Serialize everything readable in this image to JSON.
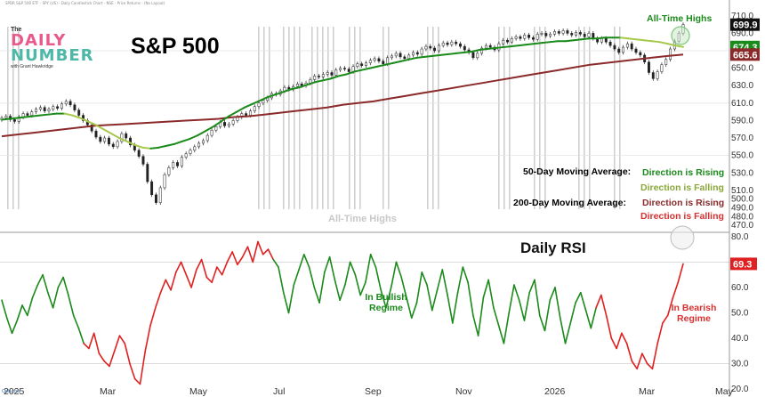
{
  "header_line": "SPDR S&P 500 ETF - SPY (US) - Daily Candlestick Chart - NSE - Price Returns - (No Layout)",
  "logo": {
    "the": "The",
    "word1": "DAILY",
    "word2": "NUMBER",
    "sub": "with Grant Hawkridge"
  },
  "title": "S&P 500",
  "rsi_title": "Daily RSI",
  "all_time_highs_label": "All-Time Highs",
  "all_time_highs_top": "All-Time Highs",
  "legend": {
    "ma50_label": "50-Day Moving Average:",
    "ma50_rising": "Direction is Rising",
    "ma50_falling": "Direction is Falling",
    "ma200_label": "200-Day Moving Average:",
    "ma200_rising": "Direction is Rising",
    "ma200_falling": "Direction is Falling"
  },
  "rsi_annotations": {
    "bullish": "In Bullish Regime",
    "bearish": "In Bearish Regime"
  },
  "corner_logo": "Optuma",
  "colors": {
    "candle": "#222222",
    "ma50_rising": "#1a8a1a",
    "ma50_falling": "#a7c94b",
    "ma200_rising": "#8b2a2a",
    "ma200_falling": "#d93030",
    "rsi_bull": "#1a8a1a",
    "rsi_bear": "#e02020",
    "ath_band": "#d0d0d0",
    "grid": "#e3e3e3"
  },
  "chart_data": [
    {
      "type": "line",
      "name": "price",
      "title": "S&P 500",
      "ylim": [
        465,
        722
      ],
      "x_ticks": [
        "2025",
        "Mar",
        "May",
        "Jul",
        "Sep",
        "Nov",
        "2026",
        "Mar",
        "May"
      ],
      "y_ticks": [
        "470.0",
        "480.0",
        "490.0",
        "500.0",
        "510.0",
        "530.0",
        "550.0",
        "570.0",
        "590.0",
        "610.0",
        "630.0",
        "650.0",
        "670.0",
        "690.0",
        "710.0"
      ],
      "last_values": {
        "price": "699.9",
        "ma50": "674.3",
        "ma200": "665.6"
      },
      "close": [
        593,
        595,
        591,
        589,
        594,
        598,
        596,
        600,
        603,
        605,
        601,
        603,
        606,
        604,
        609,
        612,
        608,
        602,
        596,
        590,
        585,
        578,
        571,
        566,
        570,
        563,
        560,
        566,
        575,
        570,
        562,
        556,
        549,
        540,
        520,
        505,
        496,
        513,
        528,
        536,
        542,
        538,
        548,
        552,
        556,
        560,
        564,
        567,
        573,
        579,
        583,
        588,
        584,
        586,
        590,
        594,
        598,
        596,
        601,
        606,
        610,
        613,
        616,
        621,
        620,
        624,
        628,
        626,
        629,
        632,
        630,
        633,
        637,
        641,
        640,
        643,
        645,
        642,
        648,
        650,
        649,
        646,
        652,
        655,
        653,
        656,
        659,
        661,
        658,
        655,
        662,
        664,
        667,
        663,
        661,
        665,
        668,
        666,
        672,
        675,
        673,
        670,
        676,
        679,
        677,
        680,
        678,
        675,
        671,
        668,
        662,
        667,
        673,
        676,
        674,
        671,
        678,
        682,
        680,
        684,
        686,
        684,
        688,
        685,
        683,
        689,
        690,
        687,
        689,
        692,
        690,
        693,
        690,
        688,
        691,
        689,
        686,
        690,
        684,
        680,
        684,
        680,
        676,
        672,
        668,
        674,
        678,
        672,
        668,
        665,
        657,
        645,
        638,
        646,
        654,
        660,
        672,
        681,
        690,
        699.9
      ],
      "ma50": [
        591,
        592,
        593,
        594,
        595,
        596,
        597,
        598,
        598,
        596,
        593,
        589,
        585,
        580,
        575,
        570,
        566,
        562,
        559,
        558,
        559,
        561,
        563,
        566,
        569,
        573,
        578,
        583,
        589,
        595,
        600,
        605,
        609,
        613,
        617,
        620,
        623,
        626,
        628,
        631,
        634,
        636,
        638,
        641,
        643,
        646,
        648,
        650,
        652,
        654,
        656,
        658,
        660,
        662,
        663,
        664,
        665,
        666,
        667,
        668,
        669,
        671,
        672,
        673,
        674,
        675,
        676,
        677,
        678,
        679,
        680,
        681,
        681,
        682,
        683,
        684,
        684,
        685,
        685,
        685,
        684,
        683,
        682,
        681,
        680,
        678,
        676,
        674.3
      ],
      "ma200": [
        572,
        574,
        576,
        578,
        580,
        582,
        584,
        585,
        586,
        587,
        588,
        589,
        590,
        591,
        592,
        594,
        595,
        597,
        599,
        601,
        603,
        605,
        608,
        610,
        612,
        615,
        618,
        621,
        624,
        627,
        630,
        633,
        636,
        639,
        642,
        645,
        648,
        651,
        654,
        656,
        658,
        660,
        662,
        664,
        665.6
      ]
    },
    {
      "type": "line",
      "name": "rsi",
      "title": "Daily RSI",
      "ylim": [
        19,
        81
      ],
      "y_ticks": [
        "20.0",
        "30.0",
        "40.0",
        "50.0",
        "60.0",
        "70.0",
        "80.0"
      ],
      "last_value": "69.3",
      "values": [
        55,
        48,
        42,
        47,
        53,
        49,
        56,
        61,
        65,
        58,
        52,
        60,
        64,
        57,
        49,
        44,
        38,
        36,
        42,
        34,
        31,
        29,
        35,
        41,
        38,
        30,
        24,
        22,
        35,
        45,
        52,
        58,
        63,
        59,
        66,
        70,
        65,
        60,
        67,
        71,
        64,
        62,
        68,
        65,
        70,
        74,
        69,
        72,
        76,
        70,
        78,
        73,
        75,
        71,
        68,
        58,
        50,
        61,
        67,
        73,
        68,
        60,
        54,
        66,
        72,
        63,
        55,
        61,
        70,
        65,
        57,
        62,
        73,
        68,
        59,
        52,
        60,
        70,
        64,
        56,
        48,
        54,
        66,
        61,
        51,
        59,
        67,
        57,
        46,
        58,
        68,
        62,
        49,
        41,
        56,
        63,
        52,
        45,
        38,
        50,
        61,
        55,
        47,
        58,
        63,
        49,
        43,
        55,
        60,
        48,
        38,
        46,
        54,
        58,
        51,
        44,
        52,
        57,
        49,
        40,
        36,
        42,
        38,
        31,
        28,
        34,
        30,
        28,
        38,
        46,
        49,
        56,
        62,
        69.3
      ],
      "bear_ranges": [
        [
          17,
          53
        ],
        [
          117,
          133
        ]
      ]
    }
  ]
}
